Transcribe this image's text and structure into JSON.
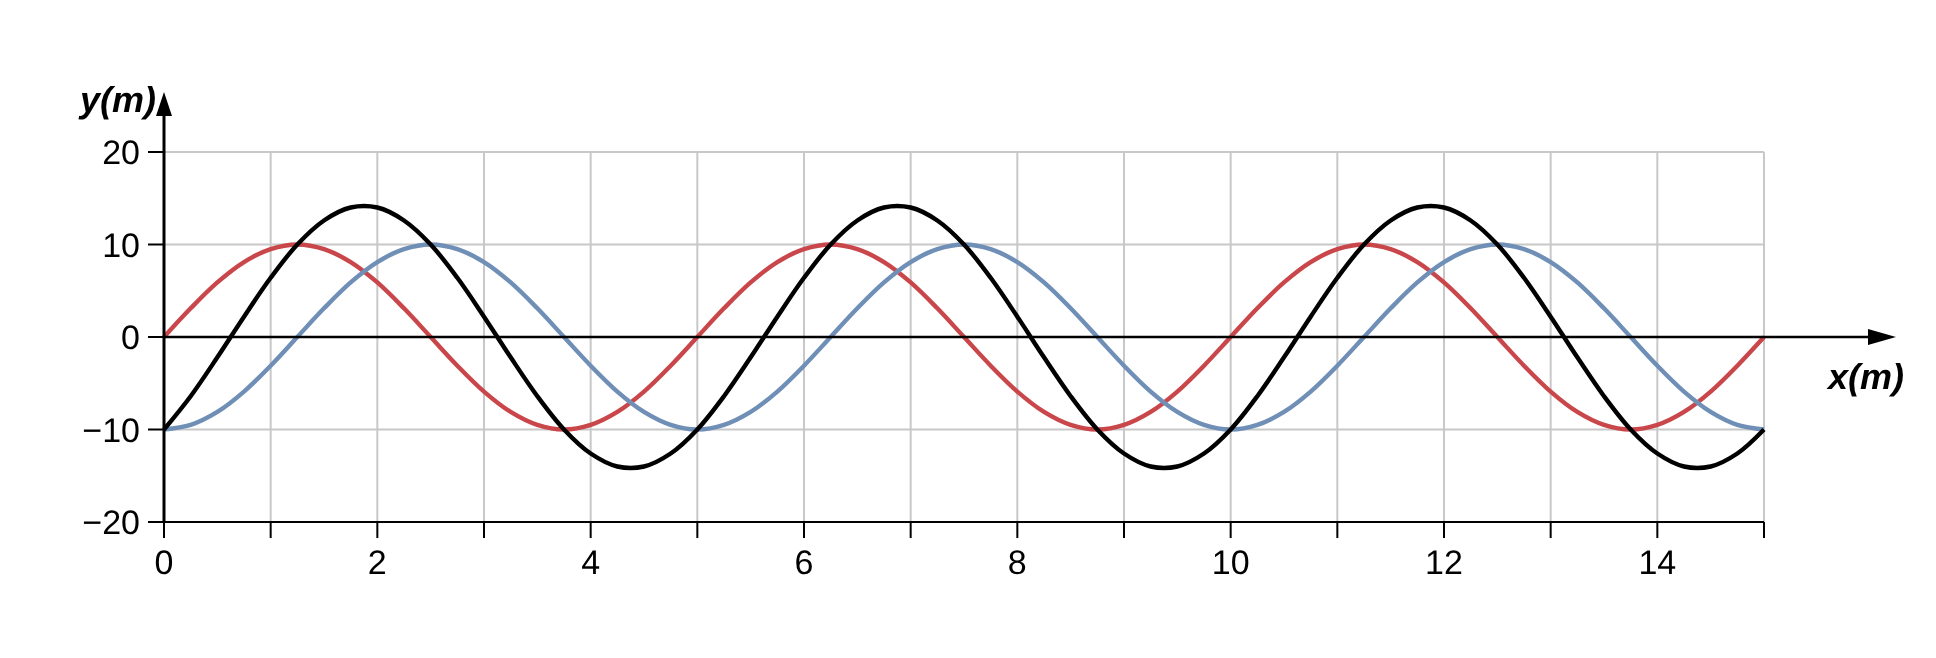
{
  "chart_data": {
    "type": "line",
    "xlabel": "x(m)",
    "ylabel": "y(m)",
    "xlim": [
      0,
      15
    ],
    "ylim": [
      -20,
      20
    ],
    "xticks": [
      0,
      {
        "value": 1,
        "label": null
      },
      2,
      {
        "value": 3,
        "label": null
      },
      4,
      {
        "value": 5,
        "label": null
      },
      6,
      {
        "value": 7,
        "label": null
      },
      8,
      {
        "value": 9,
        "label": null
      },
      10,
      {
        "value": 11,
        "label": null
      },
      12,
      {
        "value": 13,
        "label": null
      },
      14,
      {
        "value": 15,
        "label": null
      }
    ],
    "yticks": [
      {
        "value": -20,
        "label": "−20"
      },
      {
        "value": -10,
        "label": "−10"
      },
      0,
      10,
      20
    ],
    "grid": true,
    "marker": "none",
    "line_style": "solid",
    "x": [
      0,
      0.25,
      0.5,
      0.75,
      1,
      1.25,
      1.5,
      1.75,
      2,
      2.25,
      2.5,
      2.75,
      3,
      3.25,
      3.5,
      3.75,
      4,
      4.25,
      4.5,
      4.75,
      5,
      5.25,
      5.5,
      5.75,
      6,
      6.25,
      6.5,
      6.75,
      7,
      7.25,
      7.5,
      7.75,
      8,
      8.25,
      8.5,
      8.75,
      9,
      9.25,
      9.5,
      9.75,
      10,
      10.25,
      10.5,
      10.75,
      11,
      11.25,
      11.5,
      11.75,
      12,
      12.25,
      12.5,
      12.75,
      13,
      13.25,
      13.5,
      13.75,
      14,
      14.25,
      14.5,
      14.75,
      15
    ],
    "series": [
      {
        "color": "#c9474b",
        "values": [
          0,
          3.1,
          5.9,
          8.1,
          9.5,
          10,
          9.5,
          8.1,
          5.9,
          3.1,
          0,
          -3.1,
          -5.9,
          -8.1,
          -9.5,
          -10,
          -9.5,
          -8.1,
          -5.9,
          -3.1,
          0,
          3.1,
          5.9,
          8.1,
          9.5,
          10,
          9.5,
          8.1,
          5.9,
          3.1,
          0,
          -3.1,
          -5.9,
          -8.1,
          -9.5,
          -10,
          -9.5,
          -8.1,
          -5.9,
          -3.1,
          0,
          3.1,
          5.9,
          8.1,
          9.5,
          10,
          9.5,
          8.1,
          5.9,
          3.1,
          0,
          -3.1,
          -5.9,
          -8.1,
          -9.5,
          -10,
          -9.5,
          -8.1,
          -5.9,
          -3.1,
          0
        ]
      },
      {
        "color": "#6f8fb6",
        "values": [
          -10,
          -9.5,
          -8.1,
          -5.9,
          -3.1,
          0,
          3.1,
          5.9,
          8.1,
          9.5,
          10,
          9.5,
          8.1,
          5.9,
          3.1,
          0,
          -3.1,
          -5.9,
          -8.1,
          -9.5,
          -10,
          -9.5,
          -8.1,
          -5.9,
          -3.1,
          0,
          3.1,
          5.9,
          8.1,
          9.5,
          10,
          9.5,
          8.1,
          5.9,
          3.1,
          0,
          -3.1,
          -5.9,
          -8.1,
          -9.5,
          -10,
          -9.5,
          -8.1,
          -5.9,
          -3.1,
          0,
          3.1,
          5.9,
          8.1,
          9.5,
          10,
          9.5,
          8.1,
          5.9,
          3.1,
          0,
          -3.1,
          -5.9,
          -8.1,
          -9.5,
          -10
        ]
      },
      {
        "color": "#000000",
        "values": [
          -10,
          -6.4,
          -2.2,
          2.2,
          6.4,
          10,
          12.6,
          14,
          14,
          12.6,
          10,
          6.4,
          2.2,
          -2.2,
          -6.4,
          -10,
          -12.6,
          -14,
          -14,
          -12.6,
          -10,
          -6.4,
          -2.2,
          2.2,
          6.4,
          10,
          12.6,
          14,
          14,
          12.6,
          10,
          6.4,
          2.2,
          -2.2,
          -6.4,
          -10,
          -12.6,
          -14,
          -14,
          -12.6,
          -10,
          -6.4,
          -2.2,
          2.2,
          6.4,
          10,
          12.6,
          14,
          14,
          12.6,
          10,
          6.4,
          2.2,
          -2.2,
          -6.4,
          -10,
          -12.6,
          -14,
          -14,
          -12.6,
          -10
        ]
      }
    ]
  }
}
